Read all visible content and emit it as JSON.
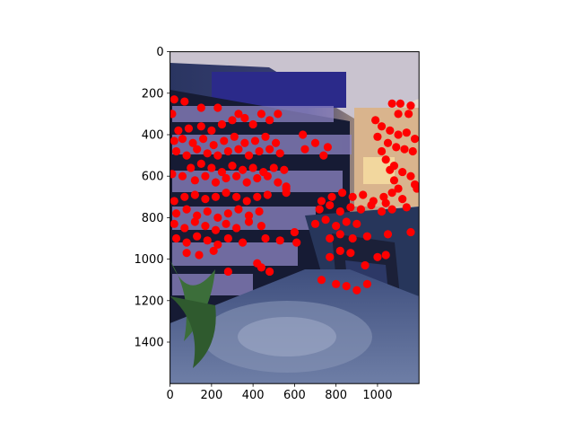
{
  "chart_data": {
    "type": "scatter",
    "title": "",
    "xlabel": "",
    "ylabel": "",
    "xlim": [
      0,
      1200
    ],
    "ylim": [
      1600,
      0
    ],
    "y_inverted": true,
    "grid": false,
    "legend": "none",
    "x_ticks": [
      0,
      200,
      400,
      600,
      800,
      1000
    ],
    "x_tick_labels": [
      "0",
      "200",
      "400",
      "600",
      "800",
      "1000"
    ],
    "y_ticks": [
      0,
      200,
      400,
      600,
      800,
      1000,
      1200,
      1400
    ],
    "y_tick_labels": [
      "0",
      "200",
      "400",
      "600",
      "800",
      "1000",
      "1200",
      "1400"
    ],
    "background": "photograph of a dark room with bookshelves, a dining chair and a patterned rug",
    "marker_color": "#ff0000",
    "series": [
      {
        "points": [
          [
            20,
            230
          ],
          [
            70,
            240
          ],
          [
            150,
            270
          ],
          [
            10,
            300
          ],
          [
            230,
            270
          ],
          [
            40,
            380
          ],
          [
            90,
            370
          ],
          [
            150,
            360
          ],
          [
            200,
            380
          ],
          [
            250,
            350
          ],
          [
            300,
            330
          ],
          [
            330,
            300
          ],
          [
            360,
            320
          ],
          [
            400,
            350
          ],
          [
            440,
            300
          ],
          [
            480,
            330
          ],
          [
            520,
            300
          ],
          [
            20,
            430
          ],
          [
            60,
            420
          ],
          [
            110,
            440
          ],
          [
            160,
            420
          ],
          [
            210,
            450
          ],
          [
            260,
            430
          ],
          [
            310,
            410
          ],
          [
            360,
            440
          ],
          [
            410,
            430
          ],
          [
            460,
            410
          ],
          [
            510,
            440
          ],
          [
            30,
            480
          ],
          [
            80,
            500
          ],
          [
            130,
            470
          ],
          [
            180,
            490
          ],
          [
            230,
            500
          ],
          [
            280,
            480
          ],
          [
            330,
            470
          ],
          [
            380,
            500
          ],
          [
            430,
            480
          ],
          [
            480,
            470
          ],
          [
            530,
            490
          ],
          [
            100,
            560
          ],
          [
            150,
            540
          ],
          [
            200,
            560
          ],
          [
            250,
            580
          ],
          [
            300,
            550
          ],
          [
            350,
            570
          ],
          [
            400,
            560
          ],
          [
            450,
            580
          ],
          [
            500,
            560
          ],
          [
            550,
            570
          ],
          [
            10,
            590
          ],
          [
            60,
            600
          ],
          [
            120,
            620
          ],
          [
            170,
            600
          ],
          [
            220,
            630
          ],
          [
            270,
            610
          ],
          [
            320,
            600
          ],
          [
            370,
            630
          ],
          [
            420,
            610
          ],
          [
            470,
            600
          ],
          [
            520,
            630
          ],
          [
            560,
            650
          ],
          [
            20,
            720
          ],
          [
            70,
            700
          ],
          [
            120,
            690
          ],
          [
            170,
            710
          ],
          [
            220,
            700
          ],
          [
            270,
            680
          ],
          [
            320,
            700
          ],
          [
            370,
            720
          ],
          [
            420,
            700
          ],
          [
            470,
            690
          ],
          [
            560,
            680
          ],
          [
            30,
            780
          ],
          [
            80,
            760
          ],
          [
            130,
            790
          ],
          [
            180,
            770
          ],
          [
            230,
            800
          ],
          [
            280,
            780
          ],
          [
            330,
            760
          ],
          [
            380,
            790
          ],
          [
            430,
            770
          ],
          [
            20,
            830
          ],
          [
            70,
            850
          ],
          [
            120,
            820
          ],
          [
            170,
            840
          ],
          [
            220,
            860
          ],
          [
            270,
            830
          ],
          [
            320,
            850
          ],
          [
            380,
            820
          ],
          [
            440,
            840
          ],
          [
            30,
            900
          ],
          [
            80,
            920
          ],
          [
            130,
            890
          ],
          [
            180,
            910
          ],
          [
            230,
            930
          ],
          [
            280,
            900
          ],
          [
            350,
            920
          ],
          [
            460,
            900
          ],
          [
            530,
            910
          ],
          [
            600,
            870
          ],
          [
            610,
            920
          ],
          [
            80,
            970
          ],
          [
            140,
            980
          ],
          [
            210,
            960
          ],
          [
            420,
            1020
          ],
          [
            440,
            1040
          ],
          [
            480,
            1060
          ],
          [
            280,
            1060
          ],
          [
            560,
            660
          ],
          [
            640,
            400
          ],
          [
            650,
            470
          ],
          [
            700,
            440
          ],
          [
            760,
            460
          ],
          [
            740,
            500
          ],
          [
            730,
            720
          ],
          [
            780,
            700
          ],
          [
            830,
            680
          ],
          [
            880,
            700
          ],
          [
            930,
            690
          ],
          [
            980,
            720
          ],
          [
            1030,
            700
          ],
          [
            720,
            760
          ],
          [
            770,
            740
          ],
          [
            820,
            770
          ],
          [
            870,
            750
          ],
          [
            920,
            760
          ],
          [
            970,
            740
          ],
          [
            1020,
            770
          ],
          [
            1070,
            760
          ],
          [
            700,
            830
          ],
          [
            750,
            810
          ],
          [
            800,
            840
          ],
          [
            850,
            820
          ],
          [
            900,
            830
          ],
          [
            770,
            900
          ],
          [
            820,
            880
          ],
          [
            880,
            900
          ],
          [
            950,
            890
          ],
          [
            1050,
            880
          ],
          [
            820,
            960
          ],
          [
            770,
            990
          ],
          [
            870,
            970
          ],
          [
            940,
            1030
          ],
          [
            1000,
            990
          ],
          [
            1040,
            980
          ],
          [
            730,
            1100
          ],
          [
            800,
            1120
          ],
          [
            850,
            1130
          ],
          [
            900,
            1150
          ],
          [
            950,
            1120
          ],
          [
            1020,
            480
          ],
          [
            1040,
            520
          ],
          [
            1060,
            570
          ],
          [
            1080,
            620
          ],
          [
            1100,
            660
          ],
          [
            1120,
            710
          ],
          [
            1070,
            250
          ],
          [
            1110,
            250
          ],
          [
            1160,
            260
          ],
          [
            1100,
            300
          ],
          [
            1150,
            300
          ],
          [
            990,
            330
          ],
          [
            1020,
            360
          ],
          [
            1060,
            380
          ],
          [
            1100,
            400
          ],
          [
            1140,
            390
          ],
          [
            1180,
            420
          ],
          [
            1000,
            410
          ],
          [
            1050,
            440
          ],
          [
            1090,
            460
          ],
          [
            1130,
            470
          ],
          [
            1170,
            480
          ],
          [
            1080,
            550
          ],
          [
            1120,
            580
          ],
          [
            1160,
            600
          ],
          [
            1180,
            640
          ],
          [
            1190,
            660
          ],
          [
            1140,
            750
          ],
          [
            1160,
            870
          ],
          [
            1070,
            680
          ],
          [
            1040,
            730
          ]
        ]
      }
    ]
  }
}
